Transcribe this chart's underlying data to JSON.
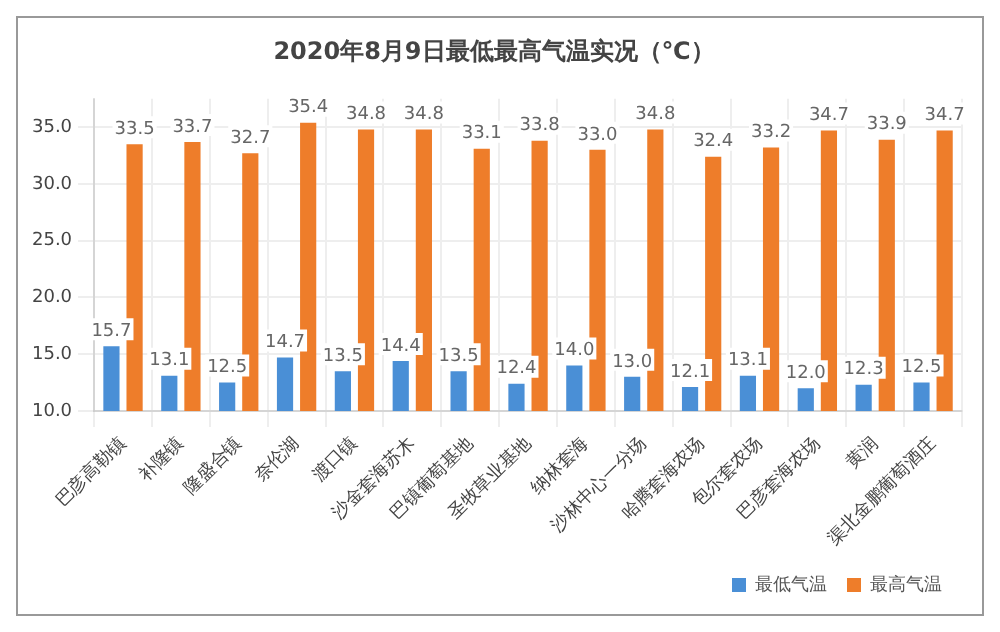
{
  "chart_data": {
    "type": "bar",
    "title": "2020年8月9日最低最高气温实况（℃）",
    "categories": [
      "巴彦高勒镇",
      "补隆镇",
      "隆盛合镇",
      "奈伦湖",
      "渡口镇",
      "沙金套海苏木",
      "巴镇葡萄基地",
      "圣牧草业基地",
      "纳林套海",
      "沙林中心一分场",
      "哈腾套海农场",
      "包尔套农场",
      "巴彦套海农场",
      "黄润",
      "渠北金鹏葡萄酒庄"
    ],
    "series": [
      {
        "name": "最低气温",
        "color": "#4a8fd6",
        "values": [
          15.7,
          13.1,
          12.5,
          14.7,
          13.5,
          14.4,
          13.5,
          12.4,
          14.0,
          13.0,
          12.1,
          13.1,
          12.0,
          12.3,
          12.5
        ],
        "value_labels": [
          "15.7",
          "13.1",
          "12.5",
          "14.7",
          "13.5",
          "14.4",
          "13.5",
          "12.4",
          "14.0",
          "13.0",
          "12.1",
          "13.1",
          "12.0",
          "12.3",
          "12.5"
        ]
      },
      {
        "name": "最高气温",
        "color": "#ee7d2a",
        "values": [
          33.5,
          33.7,
          32.7,
          35.4,
          34.8,
          34.8,
          33.1,
          33.8,
          33.0,
          34.8,
          32.4,
          33.2,
          34.7,
          33.9,
          34.7
        ],
        "value_labels": [
          "33.5",
          "33.7",
          "32.7",
          "35.4",
          "34.8",
          "34.8",
          "33.1",
          "33.8",
          "33.0",
          "34.8",
          "32.4",
          "33.2",
          "34.7",
          "33.9",
          "34.7"
        ]
      }
    ],
    "ylim": [
      10,
      37.5
    ],
    "yticks": [
      {
        "value": 10,
        "label": "10.0"
      },
      {
        "value": 15,
        "label": "15.0"
      },
      {
        "value": 20,
        "label": "20.0"
      },
      {
        "value": 25,
        "label": "25.0"
      },
      {
        "value": 30,
        "label": "30.0"
      },
      {
        "value": 35,
        "label": "35.0"
      }
    ],
    "grid": true,
    "legend": "bottom right"
  }
}
